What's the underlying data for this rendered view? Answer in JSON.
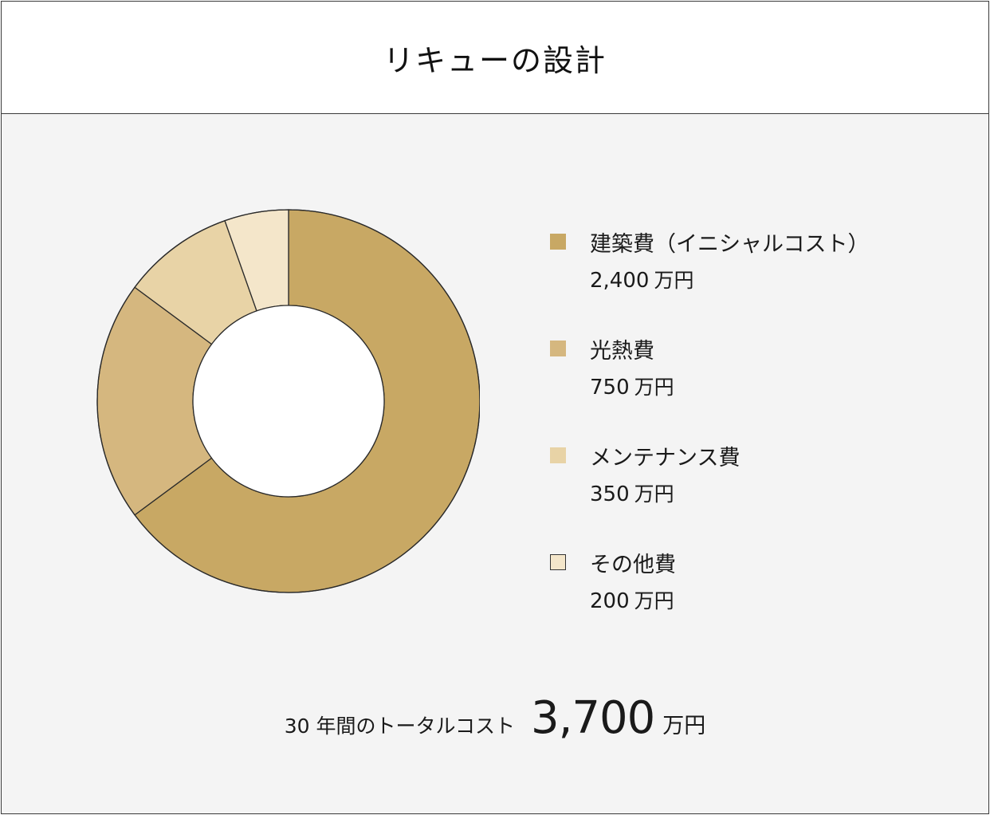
{
  "header": {
    "title": "リキューの設計"
  },
  "chart_data": {
    "type": "pie",
    "categories": [
      "建築費（イニシャルコスト）",
      "光熱費",
      "メンテナンス費",
      "その他費"
    ],
    "values": [
      2400,
      750,
      350,
      200
    ],
    "value_labels": [
      "2,400",
      "750",
      "350",
      "200"
    ],
    "unit": "万円",
    "colors": [
      "#c8a864",
      "#d5b77f",
      "#e8d3a6",
      "#f4e6ca"
    ],
    "donut": true,
    "legend_position": "right"
  },
  "total": {
    "label": "30 年間のトータルコスト",
    "value": "3,700",
    "unit": "万円"
  }
}
